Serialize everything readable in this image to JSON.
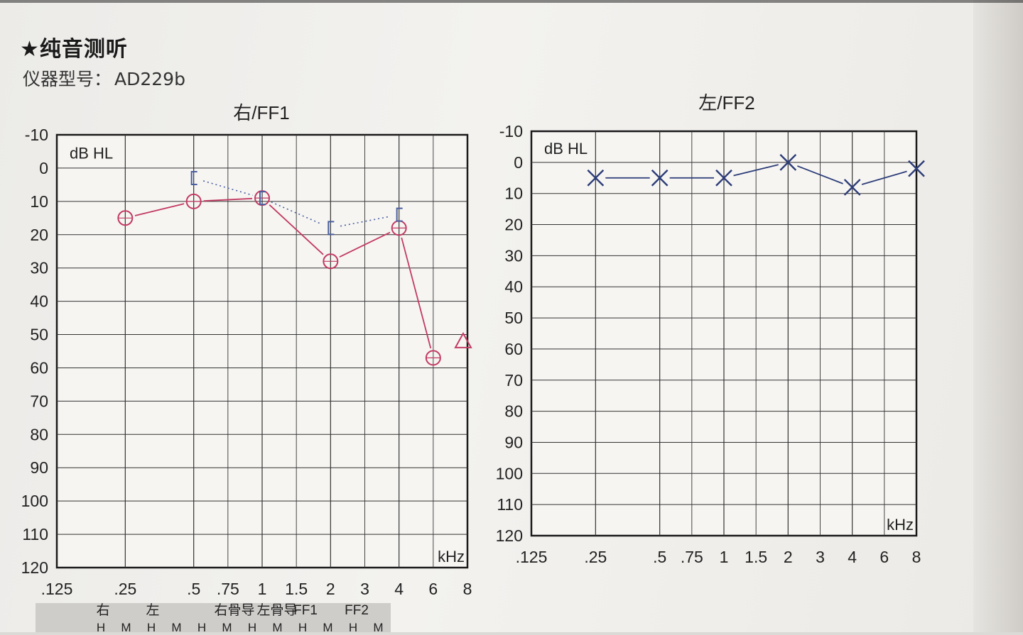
{
  "page": {
    "section_title": "★纯音测听",
    "device_label": "仪器型号：",
    "device_model": "AD229b"
  },
  "legend": {
    "groups": [
      "右",
      "左",
      "右骨导",
      "左骨导",
      "FF1",
      "FF2"
    ],
    "sub_labels": [
      "H",
      "M",
      "H",
      "M",
      "H",
      "M",
      "H",
      "M",
      "H",
      "M",
      "H",
      "M"
    ]
  },
  "chart_data": [
    {
      "type": "line",
      "title": "右/FF1",
      "unit_label": "dB HL",
      "xlabel": "kHz",
      "x_ticks": [
        ".125",
        ".25",
        ".5",
        ".75",
        "1",
        "1.5",
        "2",
        "3",
        "4",
        "6",
        "8"
      ],
      "y_ticks": [
        "-10",
        "0",
        "10",
        "20",
        "30",
        "40",
        "50",
        "60",
        "70",
        "80",
        "90",
        "100",
        "110",
        "120"
      ],
      "ylim": [
        -10,
        120
      ],
      "y_inverted": true,
      "colors": {
        "right": "#c23a63",
        "bone": "#4a5fa0"
      },
      "series": [
        {
          "name": "右",
          "symbol": "circle",
          "color": "#c23a63",
          "points": [
            [
              0.25,
              15
            ],
            [
              0.5,
              10
            ],
            [
              1,
              9
            ],
            [
              2,
              28
            ],
            [
              4,
              18
            ],
            [
              6,
              57
            ]
          ]
        },
        {
          "name": "右骨导",
          "symbol": "bracket",
          "color": "#4a5fa0",
          "points": [
            [
              0.5,
              3
            ],
            [
              1,
              9
            ],
            [
              2,
              18
            ],
            [
              4,
              14
            ]
          ]
        }
      ],
      "extra_marks": [
        {
          "symbol": "triangle",
          "color": "#c23a63",
          "point": [
            8,
            52
          ]
        }
      ]
    },
    {
      "type": "line",
      "title": "左/FF2",
      "unit_label": "dB HL",
      "xlabel": "kHz",
      "x_ticks": [
        ".125",
        ".25",
        ".5",
        ".75",
        "1",
        "1.5",
        "2",
        "3",
        "4",
        "6",
        "8"
      ],
      "y_ticks": [
        "-10",
        "0",
        "10",
        "20",
        "30",
        "40",
        "50",
        "60",
        "70",
        "80",
        "90",
        "100",
        "110",
        "120"
      ],
      "ylim": [
        -10,
        120
      ],
      "y_inverted": true,
      "colors": {
        "left": "#2c3c78"
      },
      "series": [
        {
          "name": "左",
          "symbol": "x",
          "color": "#2c3c78",
          "points": [
            [
              0.25,
              5
            ],
            [
              0.5,
              5
            ],
            [
              1,
              5
            ],
            [
              2,
              0
            ],
            [
              4,
              8
            ],
            [
              8,
              2
            ]
          ]
        }
      ]
    }
  ]
}
